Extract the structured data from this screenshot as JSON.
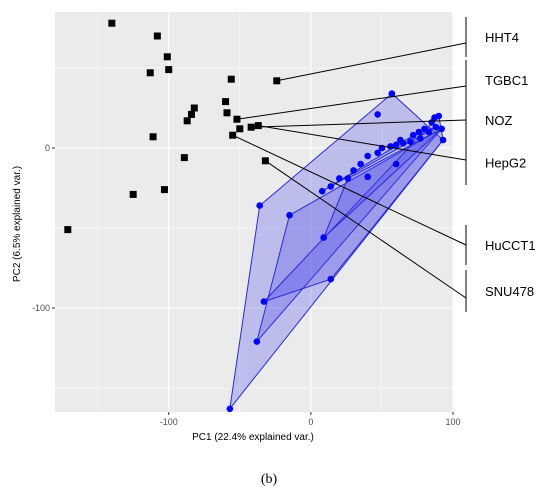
{
  "chart_data": {
    "type": "scatter",
    "xlabel": "PC1 (22.4% explained var.)",
    "ylabel": "PC2 (6.5% explained var.)",
    "xlim": [
      -180,
      100
    ],
    "ylim": [
      -165,
      85
    ],
    "x_ticks": [
      -100,
      0,
      100
    ],
    "y_ticks": [
      0,
      -100
    ],
    "x_tick_labels": [
      "-100",
      "0",
      "100"
    ],
    "y_tick_labels": [
      "0",
      "-100"
    ],
    "grid": true,
    "background_color": "#ebebeb",
    "grid_color": "#ffffff",
    "series": [
      {
        "marker": "square",
        "color": "#000000",
        "points": [
          [
            -140,
            78
          ],
          [
            -108,
            70
          ],
          [
            -101,
            57
          ],
          [
            -113,
            47
          ],
          [
            -100,
            49
          ],
          [
            -82,
            25
          ],
          [
            -84,
            21
          ],
          [
            -87,
            17
          ],
          [
            -111,
            7
          ],
          [
            -89,
            -6
          ],
          [
            -103,
            -26
          ],
          [
            -125,
            -29
          ],
          [
            -171,
            -51
          ],
          [
            -56,
            43
          ],
          [
            -60,
            29
          ],
          [
            -59,
            22
          ],
          [
            -52,
            18
          ],
          [
            -55,
            8
          ],
          [
            -50,
            12
          ],
          [
            -42,
            13
          ],
          [
            -37,
            14
          ],
          [
            -32,
            -8
          ],
          [
            -24,
            42
          ]
        ]
      },
      {
        "marker": "circle",
        "color": "#0000ff",
        "points": [
          [
            57,
            34
          ],
          [
            90,
            20
          ],
          [
            87,
            19
          ],
          [
            85,
            16
          ],
          [
            92,
            12
          ],
          [
            88,
            13
          ],
          [
            80,
            12
          ],
          [
            83,
            10
          ],
          [
            76,
            10
          ],
          [
            72,
            8
          ],
          [
            77,
            6
          ],
          [
            93,
            5
          ],
          [
            63,
            5
          ],
          [
            70,
            4
          ],
          [
            65,
            3
          ],
          [
            60,
            2
          ],
          [
            56,
            1
          ],
          [
            50,
            0
          ],
          [
            47,
            21
          ],
          [
            47,
            -3
          ],
          [
            40,
            -5
          ],
          [
            35,
            -10
          ],
          [
            30,
            -14
          ],
          [
            26,
            -19
          ],
          [
            20,
            -19
          ],
          [
            40,
            -18
          ],
          [
            60,
            -10
          ],
          [
            8,
            -27
          ],
          [
            14,
            -24
          ],
          [
            -15,
            -42
          ],
          [
            -36,
            -36
          ],
          [
            9,
            -56
          ],
          [
            -33,
            -96
          ],
          [
            14,
            -82
          ],
          [
            -38,
            -121
          ],
          [
            -57,
            -163
          ]
        ]
      }
    ],
    "hulls": [
      [
        [
          -57,
          -163
        ],
        [
          -36,
          -36
        ],
        [
          57,
          34
        ],
        [
          93,
          5
        ]
      ],
      [
        [
          -38,
          -121
        ],
        [
          -15,
          -42
        ],
        [
          92,
          12
        ]
      ],
      [
        [
          -33,
          -96
        ],
        [
          90,
          20
        ],
        [
          93,
          5
        ],
        [
          14,
          -82
        ]
      ],
      [
        [
          9,
          -56
        ],
        [
          26,
          -19
        ],
        [
          92,
          12
        ]
      ],
      [
        [
          8,
          -27
        ],
        [
          76,
          10
        ],
        [
          88,
          13
        ]
      ]
    ],
    "hull_fill": "#4848ee",
    "hull_stroke": "#2a2ad8",
    "callouts": [
      {
        "label": "HHT4",
        "from": [
          -24,
          42
        ]
      },
      {
        "label": "TGBC1",
        "from": [
          -52,
          18
        ]
      },
      {
        "label": "NOZ",
        "from": [
          -42,
          13
        ]
      },
      {
        "label": "HepG2",
        "from": [
          -37,
          14
        ]
      },
      {
        "label": "HuCCT1",
        "from": [
          -55,
          8
        ]
      },
      {
        "label": "SNU478",
        "from": [
          -32,
          -8
        ]
      }
    ],
    "panel_label": "(b)"
  }
}
